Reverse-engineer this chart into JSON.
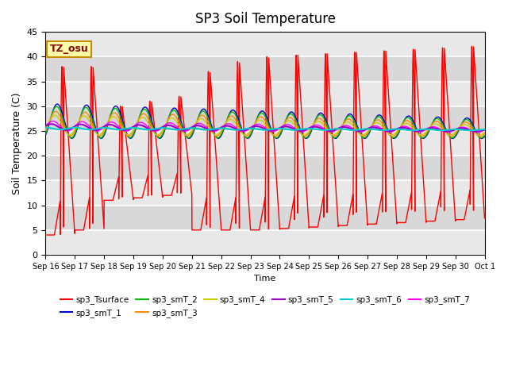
{
  "title": "SP3 Soil Temperature",
  "xlabel": "Time",
  "ylabel": "Soil Temperature (C)",
  "ylim": [
    0,
    45
  ],
  "tz_label": "TZ_osu",
  "background_color": "#f0f0f0",
  "plot_bg_color": "#f0f0f0",
  "series_colors": {
    "sp3_Tsurface": "#ff0000",
    "sp3_smT_1": "#0000cc",
    "sp3_smT_2": "#00bb00",
    "sp3_smT_3": "#ff8800",
    "sp3_smT_4": "#cccc00",
    "sp3_smT_5": "#9900cc",
    "sp3_smT_6": "#00cccc",
    "sp3_smT_7": "#ff00ff"
  },
  "x_tick_labels": [
    "Sep 16",
    "Sep 17",
    "Sep 18",
    "Sep 19",
    "Sep 20",
    "Sep 21",
    "Sep 22",
    "Sep 23",
    "Sep 24",
    "Sep 25",
    "Sep 26",
    "Sep 27",
    "Sep 28",
    "Sep 29",
    "Sep 30",
    "Oct 1"
  ],
  "n_days": 15,
  "pts_per_day": 288
}
